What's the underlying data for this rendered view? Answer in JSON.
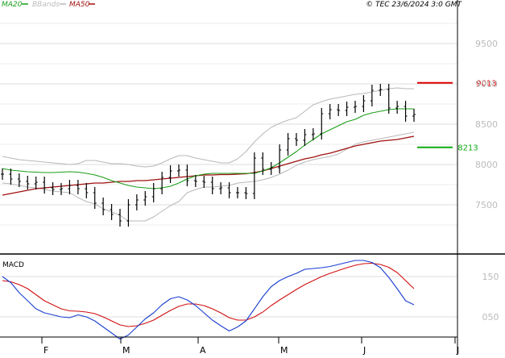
{
  "header": {
    "legend": [
      {
        "label": "MA20",
        "color": "#1a9e1a"
      },
      {
        "label": "BBands",
        "color": "#b8b8b8"
      },
      {
        "label": "MA50",
        "color": "#a01010"
      }
    ],
    "copyright": "© TEC 23/6/2024 3:0 GMT"
  },
  "colors": {
    "price": "#000000",
    "ma20": "#1a9e1a",
    "ma50": "#a01010",
    "bbands": "#b8b8b8",
    "macd": "#1a3fd0",
    "signal": "#d01010",
    "resistance": "#dd0000",
    "support": "#11aa11",
    "grid": "#dcdcdc",
    "axis": "#000000",
    "label": "#bbbbbb"
  },
  "chart_data": [
    {
      "type": "ohlc",
      "name": "price",
      "ylim": [
        6900,
        9900
      ],
      "y_ticks": [
        {
          "value": 7500,
          "label": "7500"
        },
        {
          "value": 8000,
          "label": "8000"
        },
        {
          "value": 8500,
          "label": "8500"
        },
        {
          "value": 9000,
          "label": "9000"
        },
        {
          "value": 9500,
          "label": "9500"
        }
      ],
      "x_ticks": [
        "F",
        "M",
        "A",
        "M",
        "J",
        "J"
      ],
      "levels": [
        {
          "value": 9013,
          "label": "9013",
          "kind": "resistance"
        },
        {
          "value": 8213,
          "label": "8213",
          "kind": "support"
        }
      ],
      "series": [
        {
          "name": "MA20",
          "values": [
            7950,
            7930,
            7920,
            7910,
            7905,
            7900,
            7900,
            7905,
            7910,
            7905,
            7890,
            7870,
            7840,
            7800,
            7770,
            7740,
            7720,
            7710,
            7700,
            7710,
            7730,
            7770,
            7820,
            7860,
            7880,
            7890,
            7890,
            7890,
            7890,
            7890,
            7890,
            7920,
            7960,
            8020,
            8090,
            8160,
            8240,
            8310,
            8380,
            8430,
            8480,
            8530,
            8560,
            8610,
            8640,
            8660,
            8680,
            8690,
            8690,
            8690
          ]
        },
        {
          "name": "BBands upper",
          "values": [
            8100,
            8080,
            8060,
            8050,
            8040,
            8030,
            8020,
            8010,
            8000,
            8010,
            8050,
            8050,
            8030,
            8010,
            8010,
            8000,
            7980,
            7970,
            7980,
            8020,
            8070,
            8110,
            8110,
            8080,
            8060,
            8040,
            8020,
            8020,
            8070,
            8160,
            8280,
            8380,
            8460,
            8510,
            8550,
            8580,
            8660,
            8740,
            8780,
            8810,
            8830,
            8850,
            8870,
            8880,
            8900,
            8920,
            8940,
            8950,
            8940,
            8940
          ]
        },
        {
          "name": "BBands lower",
          "values": [
            7770,
            7760,
            7740,
            7720,
            7710,
            7690,
            7670,
            7660,
            7650,
            7590,
            7540,
            7510,
            7450,
            7410,
            7370,
            7300,
            7300,
            7300,
            7350,
            7420,
            7490,
            7540,
            7650,
            7690,
            7720,
            7720,
            7730,
            7740,
            7770,
            7780,
            7790,
            7810,
            7840,
            7880,
            7930,
            7990,
            8030,
            8060,
            8080,
            8100,
            8130,
            8190,
            8250,
            8280,
            8300,
            8320,
            8340,
            8360,
            8380,
            8400
          ]
        },
        {
          "name": "MA50",
          "values": [
            7620,
            7640,
            7660,
            7680,
            7700,
            7710,
            7720,
            7730,
            7740,
            7750,
            7760,
            7770,
            7770,
            7780,
            7790,
            7790,
            7800,
            7800,
            7810,
            7820,
            7830,
            7840,
            7850,
            7860,
            7870,
            7870,
            7875,
            7875,
            7880,
            7885,
            7900,
            7920,
            7950,
            7980,
            8010,
            8040,
            8070,
            8090,
            8120,
            8140,
            8170,
            8200,
            8230,
            8250,
            8270,
            8290,
            8300,
            8310,
            8330,
            8350
          ]
        }
      ],
      "close": [
        7880,
        7820,
        7790,
        7760,
        7780,
        7710,
        7690,
        7700,
        7740,
        7700,
        7650,
        7520,
        7440,
        7380,
        7300,
        7500,
        7560,
        7600,
        7700,
        7840,
        7920,
        7930,
        7800,
        7790,
        7780,
        7700,
        7710,
        7650,
        7650,
        7640,
        8080,
        7940,
        7960,
        8180,
        8320,
        8300,
        8370,
        8380,
        8630,
        8680,
        8670,
        8710,
        8720,
        8790,
        8920,
        8930,
        8700,
        8720,
        8600,
        8620
      ]
    },
    {
      "type": "line",
      "name": "MACD",
      "ylim": [
        0,
        200
      ],
      "y_ticks": [
        {
          "value": 50,
          "label": "050"
        },
        {
          "value": 150,
          "label": "150"
        }
      ],
      "series": [
        {
          "name": "MACD",
          "values": [
            150,
            135,
            110,
            90,
            70,
            60,
            55,
            50,
            48,
            55,
            50,
            40,
            25,
            10,
            -5,
            5,
            25,
            45,
            60,
            80,
            95,
            100,
            92,
            78,
            60,
            42,
            28,
            15,
            25,
            40,
            70,
            100,
            125,
            140,
            150,
            158,
            168,
            170,
            172,
            175,
            180,
            185,
            190,
            190,
            185,
            172,
            148,
            120,
            90,
            80
          ]
        },
        {
          "name": "Signal",
          "values": [
            140,
            137,
            130,
            120,
            105,
            90,
            80,
            70,
            65,
            64,
            62,
            58,
            50,
            40,
            30,
            26,
            28,
            34,
            42,
            54,
            66,
            76,
            82,
            82,
            78,
            70,
            60,
            48,
            42,
            42,
            50,
            62,
            78,
            92,
            105,
            118,
            130,
            140,
            150,
            158,
            165,
            172,
            178,
            182,
            183,
            180,
            173,
            160,
            140,
            120
          ]
        }
      ]
    }
  ]
}
